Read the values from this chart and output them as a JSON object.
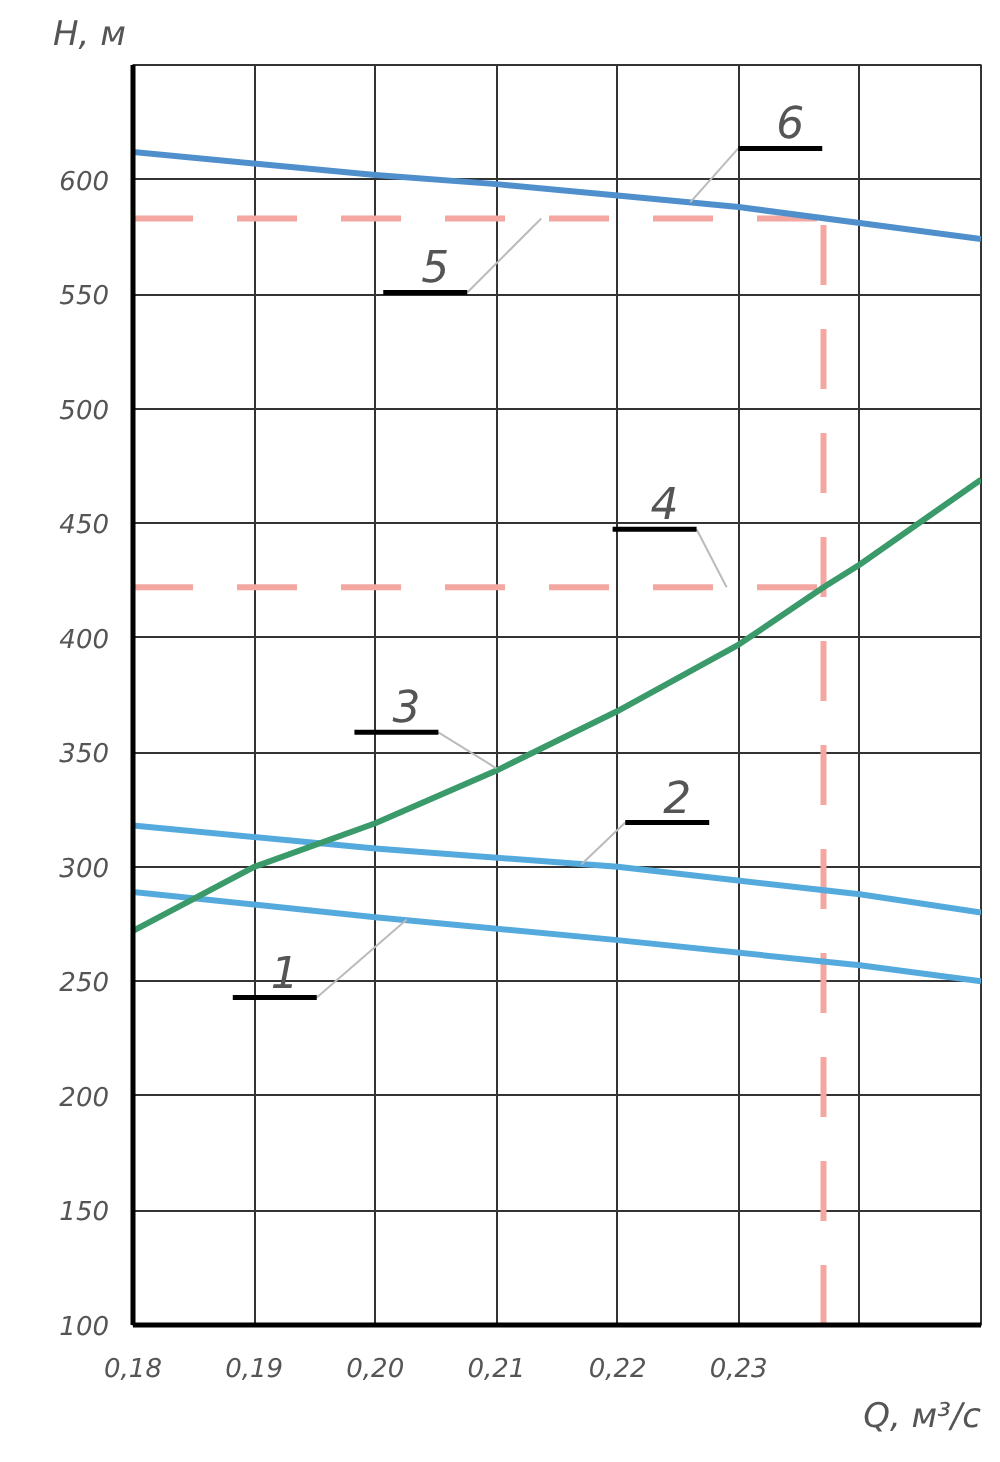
{
  "chart_data": {
    "type": "line",
    "xlabel": "Q, м³/с",
    "ylabel": "H, м",
    "xlim": [
      0.18,
      0.25
    ],
    "ylim": [
      100,
      650
    ],
    "xticks": [
      {
        "value": 0.18,
        "label": "0,18"
      },
      {
        "value": 0.19,
        "label": "0,19"
      },
      {
        "value": 0.2,
        "label": "0,20"
      },
      {
        "value": 0.21,
        "label": "0,21"
      },
      {
        "value": 0.22,
        "label": "0,22"
      },
      {
        "value": 0.23,
        "label": "0,23"
      },
      {
        "value": 0.24,
        "label": null
      }
    ],
    "yticks": [
      100,
      150,
      200,
      250,
      300,
      350,
      400,
      450,
      500,
      550,
      600
    ],
    "grid": true,
    "marker": "none",
    "line_style": "solid",
    "series": [
      {
        "color": "#55aadd",
        "x": [
          0.18,
          0.2,
          0.22,
          0.24,
          0.25
        ],
        "values": [
          289,
          278,
          268,
          257,
          250
        ]
      },
      {
        "color": "#55aadd",
        "x": [
          0.18,
          0.2,
          0.22,
          0.24,
          0.25
        ],
        "values": [
          318,
          308,
          300,
          288,
          280
        ]
      },
      {
        "color": "#3a9a6a",
        "x": [
          0.18,
          0.19,
          0.2,
          0.21,
          0.22,
          0.23,
          0.237,
          0.24,
          0.25
        ],
        "values": [
          272,
          300,
          319,
          342,
          368,
          397,
          422,
          432,
          469
        ]
      },
      {
        "color": "#4f8fcc",
        "x": [
          0.18,
          0.2,
          0.21,
          0.22,
          0.23,
          0.24,
          0.25
        ],
        "values": [
          612,
          602,
          598,
          593,
          588,
          581,
          574
        ]
      }
    ],
    "ref_lines": [
      {
        "axis": "x",
        "value": 0.237,
        "color": "#f4a6a0",
        "line_style": "dashed"
      },
      {
        "axis": "y",
        "value": 583,
        "color": "#f4a6a0",
        "line_style": "dashed"
      },
      {
        "axis": "y",
        "value": 422,
        "color": "#f4a6a0",
        "line_style": "dashed"
      }
    ],
    "annotations": [
      {
        "text": "1",
        "x": 0.2026,
        "y": 277
      },
      {
        "text": "2",
        "x": 0.217,
        "y": 301
      },
      {
        "text": "3",
        "x": 0.21,
        "y": 343
      },
      {
        "text": "4",
        "x": 0.229,
        "y": 422
      },
      {
        "text": "5",
        "x": 0.2137,
        "y": 583
      },
      {
        "text": "6",
        "x": 0.226,
        "y": 590
      }
    ]
  }
}
